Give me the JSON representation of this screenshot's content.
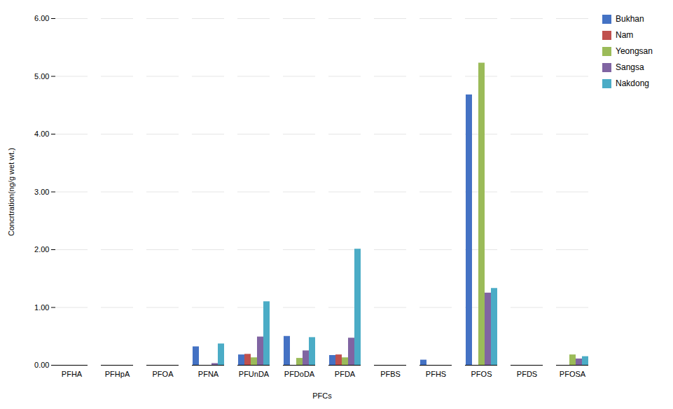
{
  "chart_data": {
    "type": "bar",
    "categories": [
      "PFHA",
      "PFHpA",
      "PFOA",
      "PFNA",
      "PFUnDA",
      "PFDoDA",
      "PFDA",
      "PFBS",
      "PFHS",
      "PFOS",
      "PFDS",
      "PFOSA"
    ],
    "series": [
      {
        "name": "Bukhan",
        "color": "#4472C4",
        "values": [
          0.0,
          0.0,
          0.0,
          0.32,
          0.18,
          0.5,
          0.17,
          0.0,
          0.09,
          4.68,
          0.0,
          0.0
        ]
      },
      {
        "name": "Nam",
        "color": "#C0504D",
        "values": [
          0.0,
          0.0,
          0.0,
          0.0,
          0.19,
          0.0,
          0.18,
          0.0,
          0.0,
          0.0,
          0.0,
          0.0
        ]
      },
      {
        "name": "Yeongsan",
        "color": "#9BBB59",
        "values": [
          0.0,
          0.0,
          0.0,
          0.0,
          0.13,
          0.12,
          0.13,
          0.0,
          0.0,
          5.23,
          0.0,
          0.18
        ]
      },
      {
        "name": "Sangsa",
        "color": "#8064A2",
        "values": [
          0.0,
          0.0,
          0.0,
          0.03,
          0.49,
          0.25,
          0.47,
          0.0,
          0.0,
          1.25,
          0.0,
          0.11
        ]
      },
      {
        "name": "Nakdong",
        "color": "#4BACC6",
        "values": [
          0.0,
          0.0,
          0.0,
          0.37,
          1.1,
          0.48,
          2.01,
          0.0,
          0.0,
          1.33,
          0.0,
          0.15
        ]
      }
    ],
    "xlabel": "PFCs",
    "ylabel": "Concrtration(ng/g wet wt.)",
    "ylim": [
      0,
      6.0
    ],
    "yticks": [
      {
        "value": 0.0,
        "label": "0.00"
      },
      {
        "value": 1.0,
        "label": "1.00"
      },
      {
        "value": 2.0,
        "label": "2.00"
      },
      {
        "value": 3.0,
        "label": "3.00"
      },
      {
        "value": 4.0,
        "label": "4.00"
      },
      {
        "value": 5.0,
        "label": "5.00"
      },
      {
        "value": 6.0,
        "label": "6.00"
      }
    ],
    "grid": true,
    "legend": "right"
  }
}
